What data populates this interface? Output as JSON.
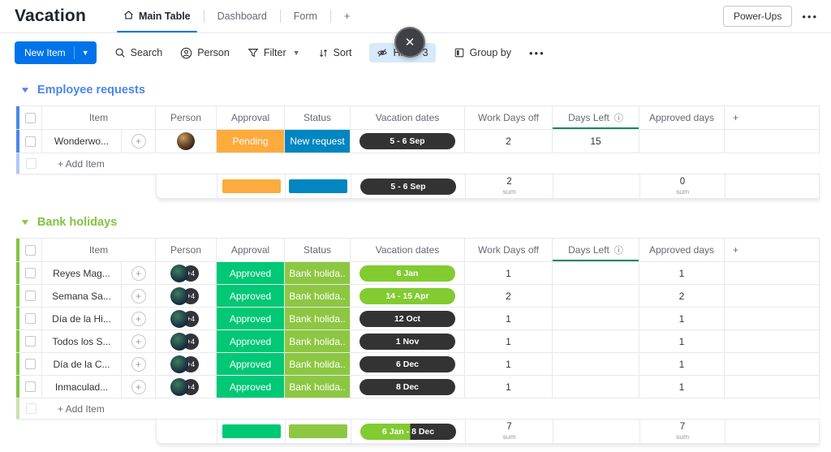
{
  "board": {
    "title": "Vacation"
  },
  "tabs": [
    {
      "label": "Main Table",
      "active": true
    },
    {
      "label": "Dashboard",
      "active": false
    },
    {
      "label": "Form",
      "active": false
    },
    {
      "label": "+",
      "active": false
    }
  ],
  "topbar_right": {
    "power_ups": "Power-Ups",
    "more": "•••"
  },
  "toolbar": {
    "new_item": "New Item",
    "search": "Search",
    "person": "Person",
    "filter": "Filter",
    "sort": "Sort",
    "hide": "Hide / 3",
    "group_by": "Group by",
    "more": "•••",
    "close": "✕"
  },
  "columns": {
    "item": "Item",
    "person": "Person",
    "approval": "Approval",
    "status": "Status",
    "vacation": "Vacation dates",
    "work_days": "Work Days off",
    "days_left": "Days Left",
    "approved_days": "Approved days",
    "add_column": "+"
  },
  "colors": {
    "accent_blue": "#0073ea",
    "group_blue": "#4b87e8",
    "group_green": "#85c341",
    "pending_orange": "#fdab3d",
    "new_request_blue": "#0086c0",
    "approved_green": "#00c875",
    "status_lime": "#8dc742",
    "pill_lime": "#82cb31",
    "pill_dark": "#333333",
    "days_left_underline": "#0f8a56"
  },
  "groups": [
    {
      "name": "Employee requests",
      "color": "#4b87e8",
      "row_height": "tall",
      "rows": [
        {
          "item": "Wonderwo...",
          "avatar": "single",
          "avatar_extra": "",
          "approval": "Pending",
          "approval_color": "#fdab3d",
          "status": "New request",
          "status_color": "#0086c0",
          "dates": "5 - 6 Sep",
          "dates_variant": "dark",
          "work_days": "2",
          "days_left": "15",
          "approved_days": ""
        }
      ],
      "add_item": "+ Add Item",
      "summary": {
        "approval_color": "#fdab3d",
        "status_color": "#0086c0",
        "dates": "5 - 6 Sep",
        "dates_variant": "dark",
        "work_days_sum": "2",
        "approved_days_sum": "0",
        "sum_label": "sum"
      }
    },
    {
      "name": "Bank holidays",
      "color": "#85c341",
      "row_height": "normal",
      "rows": [
        {
          "item": "Reyes Mag...",
          "avatar": "multi",
          "avatar_extra": "+4",
          "approval": "Approved",
          "approval_color": "#00c875",
          "status": "Bank holida..",
          "status_color": "#8dc742",
          "dates": "6 Jan",
          "dates_variant": "green",
          "work_days": "1",
          "days_left": "",
          "approved_days": "1"
        },
        {
          "item": "Semana Sa...",
          "avatar": "multi",
          "avatar_extra": "+4",
          "approval": "Approved",
          "approval_color": "#00c875",
          "status": "Bank holida..",
          "status_color": "#8dc742",
          "dates": "14 - 15 Apr",
          "dates_variant": "green",
          "work_days": "2",
          "days_left": "",
          "approved_days": "2"
        },
        {
          "item": "Día de la Hi...",
          "avatar": "multi",
          "avatar_extra": "+4",
          "approval": "Approved",
          "approval_color": "#00c875",
          "status": "Bank holida..",
          "status_color": "#8dc742",
          "dates": "12 Oct",
          "dates_variant": "dark",
          "work_days": "1",
          "days_left": "",
          "approved_days": "1"
        },
        {
          "item": "Todos los S...",
          "avatar": "multi",
          "avatar_extra": "+4",
          "approval": "Approved",
          "approval_color": "#00c875",
          "status": "Bank holida..",
          "status_color": "#8dc742",
          "dates": "1 Nov",
          "dates_variant": "dark",
          "work_days": "1",
          "days_left": "",
          "approved_days": "1"
        },
        {
          "item": "Día de la C...",
          "avatar": "multi",
          "avatar_extra": "+4",
          "approval": "Approved",
          "approval_color": "#00c875",
          "status": "Bank holida..",
          "status_color": "#8dc742",
          "dates": "6 Dec",
          "dates_variant": "dark",
          "work_days": "1",
          "days_left": "",
          "approved_days": "1"
        },
        {
          "item": "Inmaculad...",
          "avatar": "multi",
          "avatar_extra": "+4",
          "approval": "Approved",
          "approval_color": "#00c875",
          "status": "Bank holida..",
          "status_color": "#8dc742",
          "dates": "8 Dec",
          "dates_variant": "dark",
          "work_days": "1",
          "days_left": "",
          "approved_days": "1"
        }
      ],
      "add_item": "+ Add Item",
      "summary": {
        "approval_color": "#00c875",
        "status_color": "#8dc742",
        "dates": "6 Jan - 8 Dec",
        "dates_variant": "split",
        "work_days_sum": "7",
        "approved_days_sum": "7",
        "sum_label": "sum"
      }
    }
  ]
}
